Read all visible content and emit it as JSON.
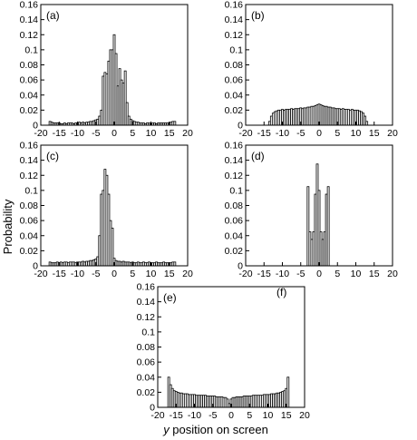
{
  "figure": {
    "ylabel": "Probability",
    "xlabel_var": "y",
    "xlabel_rest": " position on screen"
  },
  "chart_data": [
    {
      "type": "bar",
      "panel_label": "(a)",
      "xlim": [
        -20,
        20
      ],
      "ylim": [
        0,
        0.16
      ],
      "xticks": [
        -20,
        -15,
        -10,
        -5,
        0,
        5,
        10,
        15,
        20
      ],
      "yticks": [
        0,
        0.02,
        0.04,
        0.06,
        0.08,
        0.1,
        0.12,
        0.14,
        0.16
      ],
      "ytick_labels": [
        "0",
        "0.02",
        "0.04",
        "0.06",
        "0.08",
        "0.1",
        "0.12",
        "0.14",
        "0.16"
      ],
      "bin_width": 0.5,
      "x": [
        -17.5,
        -17,
        -16.5,
        -16,
        -15.5,
        -15,
        -14.5,
        -14,
        -13.5,
        -13,
        -12.5,
        -12,
        -11.5,
        -11,
        -10.5,
        -10,
        -9.5,
        -9,
        -8.5,
        -8,
        -7.5,
        -7,
        -6.5,
        -6,
        -5.5,
        -5,
        -4.5,
        -4,
        -3.5,
        -3,
        -2.5,
        -2,
        -1.5,
        -1,
        -0.5,
        0,
        0.5,
        1,
        1.5,
        2,
        2.5,
        3,
        3.5,
        4,
        4.5,
        5,
        5.5,
        6,
        6.5,
        7,
        7.5,
        8,
        8.5,
        9,
        9.5,
        10,
        10.5,
        11,
        11.5,
        12,
        12.5,
        13,
        13.5,
        14,
        14.5,
        15,
        15.5,
        16,
        16.5
      ],
      "values": [
        0.005,
        0.004,
        0.003,
        0.003,
        0.003,
        0.003,
        0.002,
        0.002,
        0.003,
        0.002,
        0.003,
        0.003,
        0.003,
        0.002,
        0.003,
        0.003,
        0.004,
        0.003,
        0.004,
        0.003,
        0.004,
        0.004,
        0.005,
        0.005,
        0.006,
        0.007,
        0.008,
        0.012,
        0.02,
        0.065,
        0.07,
        0.068,
        0.085,
        0.1,
        0.1,
        0.12,
        0.095,
        0.052,
        0.075,
        0.06,
        0.056,
        0.072,
        0.03,
        0.012,
        0.008,
        0.006,
        0.005,
        0.004,
        0.004,
        0.003,
        0.003,
        0.003,
        0.002,
        0.003,
        0.003,
        0.002,
        0.003,
        0.003,
        0.002,
        0.003,
        0.003,
        0.003,
        0.003,
        0.003,
        0.003,
        0.003,
        0.004,
        0.005,
        0.005
      ]
    },
    {
      "type": "bar",
      "panel_label": "(b)",
      "xlim": [
        -20,
        20
      ],
      "ylim": [
        0,
        0.16
      ],
      "xticks": [
        -20,
        -15,
        -10,
        -5,
        0,
        5,
        10,
        15,
        20
      ],
      "yticks": [
        0,
        0.02,
        0.04,
        0.06,
        0.08,
        0.1,
        0.12,
        0.14,
        0.16
      ],
      "ytick_labels": [
        "0",
        "0.02",
        "0.04",
        "0.06",
        "0.08",
        "0.1",
        "0.12",
        "0.14",
        "0.16"
      ],
      "bin_width": 0.5,
      "x": [
        -13.5,
        -13,
        -12.5,
        -12,
        -11.5,
        -11,
        -10.5,
        -10,
        -9.5,
        -9,
        -8.5,
        -8,
        -7.5,
        -7,
        -6.5,
        -6,
        -5.5,
        -5,
        -4.5,
        -4,
        -3.5,
        -3,
        -2.5,
        -2,
        -1.5,
        -1,
        -0.5,
        0,
        0.5,
        1,
        1.5,
        2,
        2.5,
        3,
        3.5,
        4,
        4.5,
        5,
        5.5,
        6,
        6.5,
        7,
        7.5,
        8,
        8.5,
        9,
        9.5,
        10,
        10.5,
        11,
        11.5,
        12,
        12.5,
        13
      ],
      "values": [
        0.005,
        0.012,
        0.016,
        0.018,
        0.019,
        0.02,
        0.02,
        0.021,
        0.02,
        0.021,
        0.021,
        0.021,
        0.022,
        0.021,
        0.022,
        0.022,
        0.022,
        0.023,
        0.022,
        0.023,
        0.023,
        0.024,
        0.024,
        0.025,
        0.025,
        0.026,
        0.027,
        0.028,
        0.027,
        0.026,
        0.025,
        0.025,
        0.024,
        0.024,
        0.023,
        0.023,
        0.022,
        0.022,
        0.022,
        0.021,
        0.022,
        0.021,
        0.021,
        0.021,
        0.02,
        0.021,
        0.02,
        0.02,
        0.02,
        0.019,
        0.018,
        0.016,
        0.012,
        0.005
      ]
    },
    {
      "type": "bar",
      "panel_label": "(c)",
      "xlim": [
        -20,
        20
      ],
      "ylim": [
        0,
        0.16
      ],
      "xticks": [
        -20,
        -15,
        -10,
        -5,
        0,
        5,
        10,
        15,
        20
      ],
      "yticks": [
        0,
        0.02,
        0.04,
        0.06,
        0.08,
        0.1,
        0.12,
        0.14,
        0.16
      ],
      "ytick_labels": [
        "0",
        "0.02",
        "0.04",
        "0.06",
        "0.08",
        "0.1",
        "0.12",
        "0.14",
        "0.16"
      ],
      "bin_width": 0.5,
      "x": [
        -17.5,
        -17,
        -16.5,
        -16,
        -15.5,
        -15,
        -14.5,
        -14,
        -13.5,
        -13,
        -12.5,
        -12,
        -11.5,
        -11,
        -10.5,
        -10,
        -9.5,
        -9,
        -8.5,
        -8,
        -7.5,
        -7,
        -6.5,
        -6,
        -5.5,
        -5,
        -4.5,
        -4,
        -3.5,
        -3,
        -2.5,
        -2,
        -1.5,
        -1,
        -0.5,
        0,
        0.5,
        1,
        1.5,
        2,
        2.5,
        3,
        3.5,
        4,
        4.5,
        5,
        5.5,
        6,
        6.5,
        7,
        7.5,
        8,
        8.5,
        9,
        9.5,
        10,
        10.5,
        11,
        11.5,
        12,
        12.5,
        13,
        13.5,
        14,
        14.5,
        15,
        15.5,
        16,
        16.5
      ],
      "values": [
        0.005,
        0.004,
        0.004,
        0.004,
        0.005,
        0.004,
        0.005,
        0.004,
        0.005,
        0.005,
        0.004,
        0.005,
        0.005,
        0.005,
        0.004,
        0.005,
        0.005,
        0.005,
        0.006,
        0.005,
        0.006,
        0.006,
        0.007,
        0.007,
        0.008,
        0.009,
        0.012,
        0.04,
        0.095,
        0.1,
        0.128,
        0.12,
        0.095,
        0.06,
        0.05,
        0.01,
        0.007,
        0.006,
        0.006,
        0.005,
        0.006,
        0.005,
        0.005,
        0.005,
        0.004,
        0.005,
        0.004,
        0.004,
        0.005,
        0.004,
        0.004,
        0.005,
        0.004,
        0.004,
        0.005,
        0.004,
        0.004,
        0.004,
        0.005,
        0.004,
        0.004,
        0.004,
        0.005,
        0.004,
        0.004,
        0.004,
        0.004,
        0.005,
        0.005
      ]
    },
    {
      "type": "bar",
      "panel_label": "(d)",
      "xlim": [
        -20,
        20
      ],
      "ylim": [
        0,
        0.16
      ],
      "xticks": [
        -20,
        -15,
        -10,
        -5,
        0,
        5,
        10,
        15,
        20
      ],
      "yticks": [
        0,
        0.02,
        0.04,
        0.06,
        0.08,
        0.1,
        0.12,
        0.14,
        0.16
      ],
      "ytick_labels": [
        "0",
        "0.02",
        "0.04",
        "0.06",
        "0.08",
        "0.1",
        "0.12",
        "0.14",
        "0.16"
      ],
      "bin_width": 0.5,
      "x": [
        -3,
        -2.5,
        -2,
        -1.5,
        -1,
        -0.5,
        0,
        0.5,
        1,
        1.5,
        2,
        2.5,
        3
      ],
      "values": [
        0.105,
        0.045,
        0.035,
        0.045,
        0.095,
        0.135,
        0.1,
        0.045,
        0.035,
        0.045,
        0.095,
        0.105,
        0.0
      ]
    },
    {
      "type": "bar",
      "panel_label": "(e)",
      "extra_label": "(f)",
      "xlim": [
        -20,
        20
      ],
      "ylim": [
        0,
        0.16
      ],
      "xticks": [
        -20,
        -15,
        -10,
        -5,
        0,
        5,
        10,
        15,
        20
      ],
      "yticks": [
        0,
        0.02,
        0.04,
        0.06,
        0.08,
        0.1,
        0.12,
        0.14,
        0.16
      ],
      "ytick_labels": [
        "0",
        "0.02",
        "0.04",
        "0.06",
        "0.08",
        "0.1",
        "0.12",
        "0.14",
        "0.16"
      ],
      "bin_width": 0.5,
      "x": [
        -17,
        -16.5,
        -16,
        -15.5,
        -15,
        -14.5,
        -14,
        -13.5,
        -13,
        -12.5,
        -12,
        -11.5,
        -11,
        -10.5,
        -10,
        -9.5,
        -9,
        -8.5,
        -8,
        -7.5,
        -7,
        -6.5,
        -6,
        -5.5,
        -5,
        -4.5,
        -4,
        -3.5,
        -3,
        -2.5,
        -2,
        -1.5,
        -1,
        -0.5,
        0,
        0.5,
        1,
        1.5,
        2,
        2.5,
        3,
        3.5,
        4,
        4.5,
        5,
        5.5,
        6,
        6.5,
        7,
        7.5,
        8,
        8.5,
        9,
        9.5,
        10,
        10.5,
        11,
        11.5,
        12,
        12.5,
        13,
        13.5,
        14,
        14.5,
        15,
        15.5
      ],
      "values": [
        0.04,
        0.03,
        0.025,
        0.022,
        0.021,
        0.02,
        0.019,
        0.019,
        0.018,
        0.018,
        0.018,
        0.017,
        0.017,
        0.017,
        0.017,
        0.016,
        0.016,
        0.016,
        0.016,
        0.016,
        0.016,
        0.015,
        0.015,
        0.015,
        0.015,
        0.015,
        0.014,
        0.014,
        0.014,
        0.014,
        0.013,
        0.013,
        0.011,
        0.005,
        0.011,
        0.013,
        0.013,
        0.014,
        0.014,
        0.014,
        0.014,
        0.015,
        0.015,
        0.015,
        0.015,
        0.015,
        0.016,
        0.016,
        0.016,
        0.016,
        0.016,
        0.016,
        0.017,
        0.017,
        0.017,
        0.017,
        0.018,
        0.018,
        0.018,
        0.019,
        0.019,
        0.02,
        0.021,
        0.022,
        0.025,
        0.04
      ]
    }
  ]
}
